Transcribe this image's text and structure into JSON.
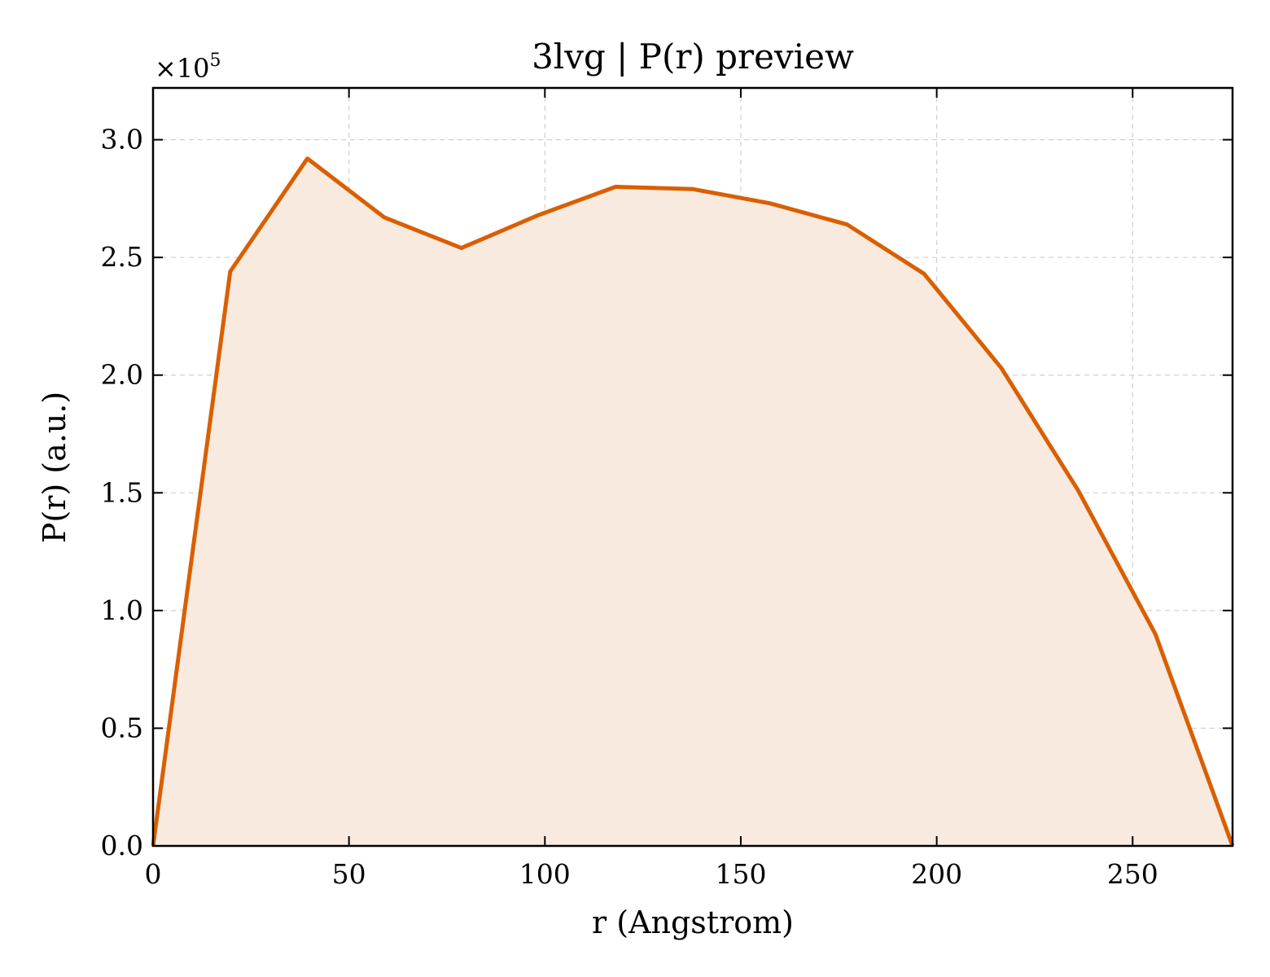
{
  "chart_data": {
    "type": "area",
    "title": "3lvg | P(r) preview",
    "xlabel": "r (Angstrom)",
    "ylabel": "P(r) (a.u.)",
    "offset_text": "×10",
    "offset_exponent": "5",
    "xlim": [
      0,
      275.5
    ],
    "ylim": [
      0,
      3.22
    ],
    "xticks": [
      0,
      50,
      100,
      150,
      200,
      250
    ],
    "xtick_labels": [
      "0",
      "50",
      "100",
      "150",
      "200",
      "250"
    ],
    "yticks": [
      0,
      0.5,
      1.0,
      1.5,
      2.0,
      2.5,
      3.0
    ],
    "ytick_labels": [
      "0.0",
      "0.5",
      "1.0",
      "1.5",
      "2.0",
      "2.5",
      "3.0"
    ],
    "grid": true,
    "line_color": "#d95f02",
    "fill_color": "#f9eadf",
    "series": [
      {
        "x": [
          0,
          19.7,
          39.4,
          59.0,
          78.7,
          98.4,
          118.1,
          137.8,
          157.4,
          177.1,
          196.8,
          216.5,
          236.1,
          255.8,
          275.5
        ],
        "y": [
          0.0,
          2.44,
          2.92,
          2.67,
          2.54,
          2.68,
          2.8,
          2.79,
          2.73,
          2.64,
          2.43,
          2.03,
          1.51,
          0.9,
          0.0
        ]
      }
    ]
  }
}
